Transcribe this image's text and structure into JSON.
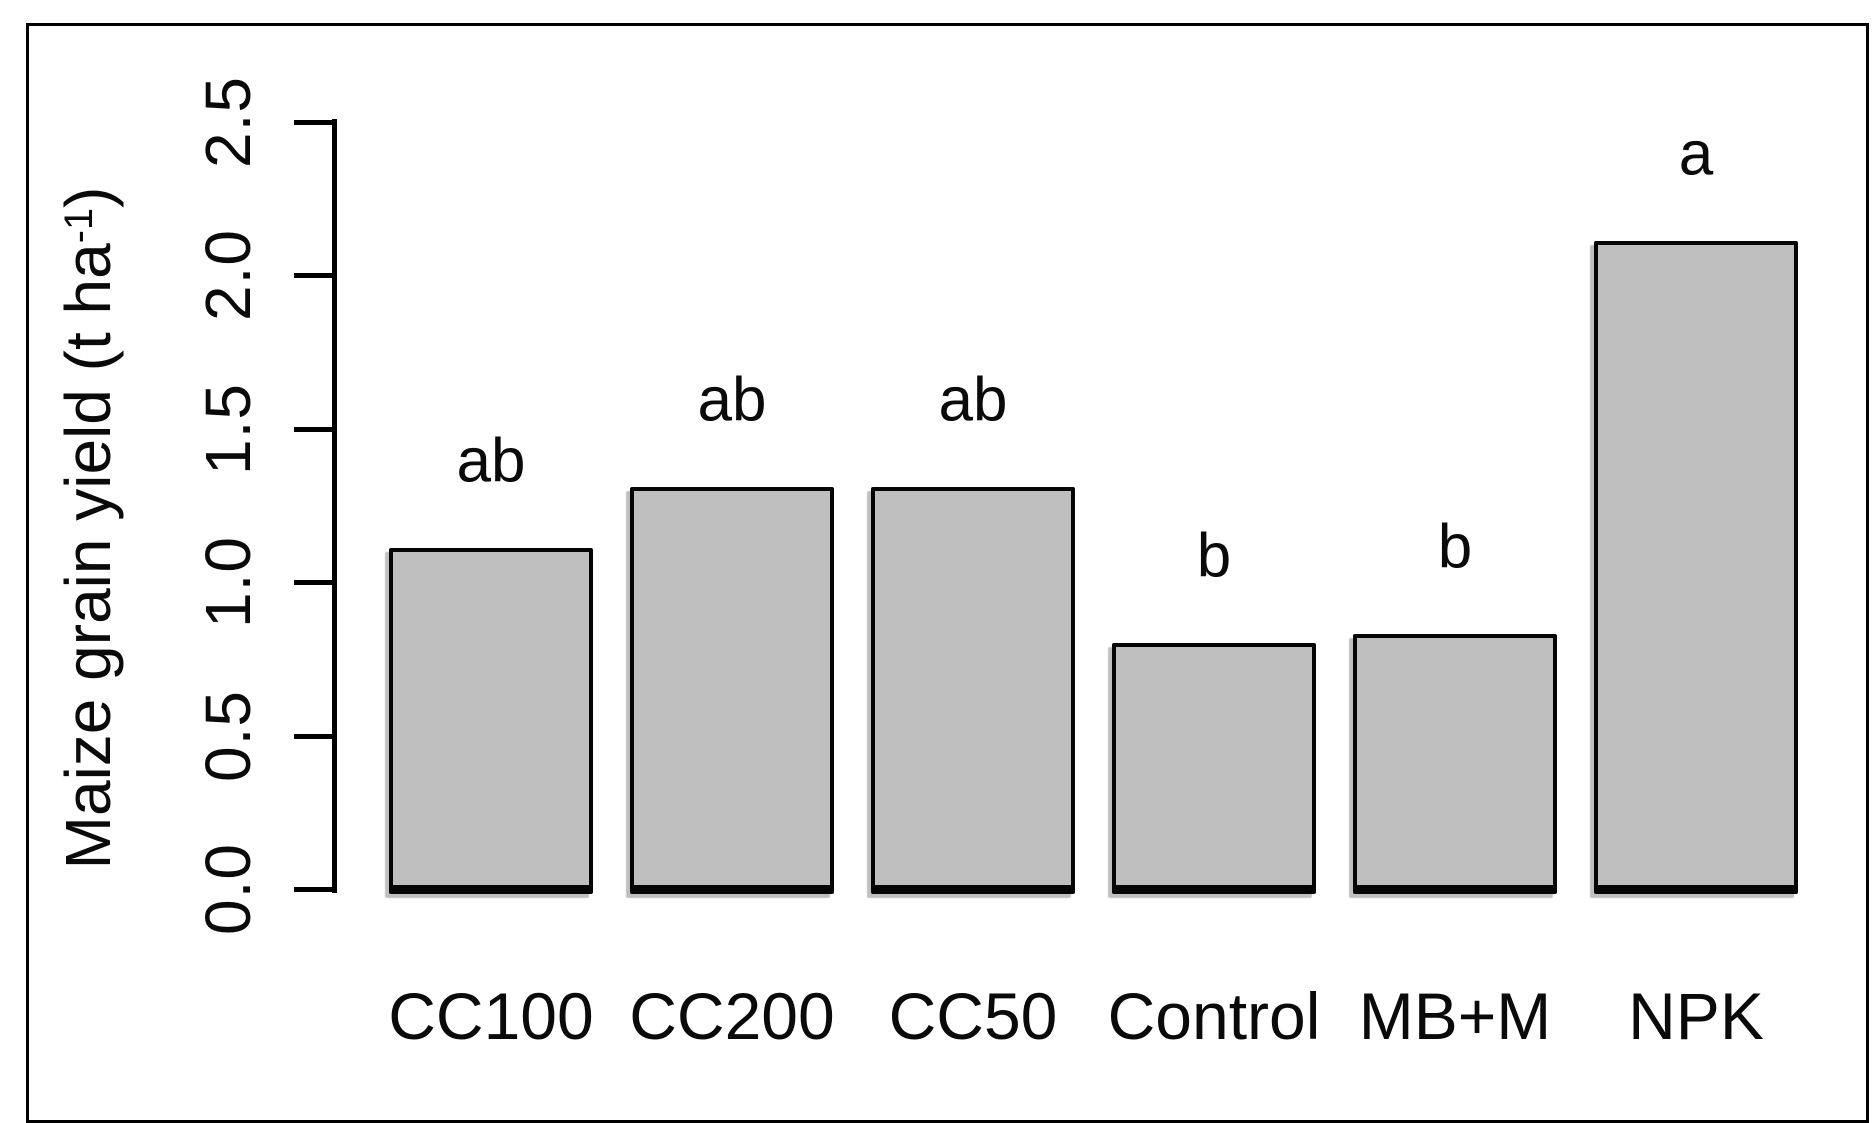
{
  "figure": {
    "background_color": "#ffffff",
    "frame_color": "#000000",
    "text_color": "#0a0a0a"
  },
  "chart_data": {
    "type": "bar",
    "title": "",
    "xlabel": "",
    "ylabel": "Maize grain yield (t ha⁻¹)",
    "ylabel_parts": {
      "prefix": "Maize grain yield (t ha",
      "sup": "-1",
      "suffix": ")"
    },
    "categories": [
      "CC100",
      "CC200",
      "CC50",
      "Control",
      "MB+M",
      "NPK"
    ],
    "values": [
      1.1,
      1.3,
      1.3,
      0.79,
      0.82,
      2.1
    ],
    "significance_letters": [
      "ab",
      "ab",
      "ab",
      "b",
      "b",
      "a"
    ],
    "yticks": [
      "0.0",
      "0.5",
      "1.0",
      "1.5",
      "2.0",
      "2.5"
    ],
    "ylim": [
      0,
      2.5
    ],
    "grid": false,
    "legend": false,
    "bar_fill_color": "#bfbfbf",
    "bar_border_color": "#000000"
  }
}
